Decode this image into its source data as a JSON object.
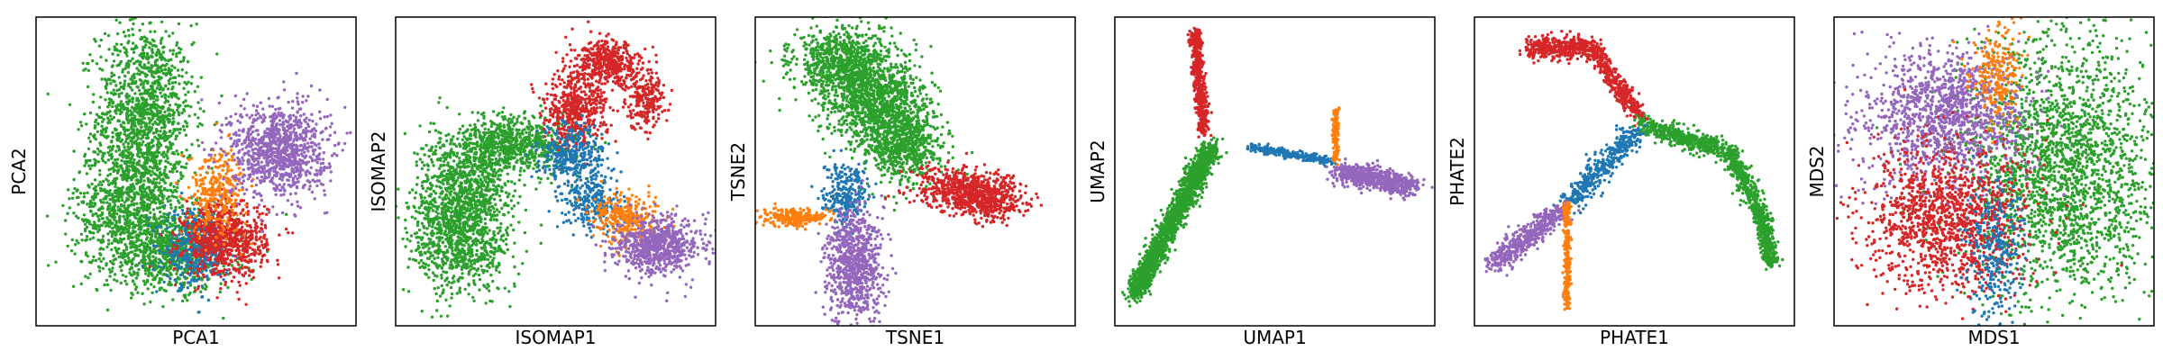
{
  "chart_data": [
    {
      "type": "scatter",
      "title": "",
      "xlabel": "PCA1",
      "ylabel": "PCA2",
      "xticks": [],
      "yticks": [],
      "xlim": [
        0,
        10
      ],
      "ylim": [
        0,
        10
      ],
      "grid": false,
      "series": [
        {
          "name": "green",
          "color": "#2ca02c",
          "clusters": [
            {
              "x": 3.4,
              "y": 6.8,
              "sx": 0.75,
              "sy": 1.5,
              "n": 1300
            },
            {
              "x": 2.9,
              "y": 3.8,
              "sx": 0.85,
              "sy": 1.0,
              "n": 900
            },
            {
              "x": 4.2,
              "y": 2.3,
              "sx": 1.0,
              "sy": 0.6,
              "n": 700
            }
          ]
        },
        {
          "name": "blue",
          "color": "#1f77b4",
          "clusters": [
            {
              "x": 5.0,
              "y": 2.5,
              "sx": 0.5,
              "sy": 0.6,
              "n": 400
            }
          ]
        },
        {
          "name": "red",
          "color": "#d62728",
          "clusters": [
            {
              "x": 5.9,
              "y": 2.8,
              "sx": 0.65,
              "sy": 0.6,
              "n": 800
            }
          ]
        },
        {
          "name": "orange",
          "color": "#ff7f0e",
          "clusters": [
            {
              "x": 5.7,
              "y": 4.4,
              "sx": 0.45,
              "sy": 0.7,
              "n": 300
            }
          ]
        },
        {
          "name": "purple",
          "color": "#9467bd",
          "clusters": [
            {
              "x": 7.6,
              "y": 5.7,
              "sx": 0.75,
              "sy": 0.75,
              "n": 1000
            }
          ]
        }
      ]
    },
    {
      "type": "scatter",
      "title": "",
      "xlabel": "ISOMAP1",
      "ylabel": "ISOMAP2",
      "xticks": [],
      "yticks": [],
      "xlim": [
        0,
        10
      ],
      "ylim": [
        0,
        10
      ],
      "grid": false,
      "series": [
        {
          "name": "green",
          "color": "#2ca02c",
          "clusters": [
            {
              "x": 2.0,
              "y": 2.8,
              "sx": 0.8,
              "sy": 0.9,
              "n": 900
            },
            {
              "x": 2.2,
              "y": 4.7,
              "sx": 0.7,
              "sy": 0.8,
              "n": 700
            },
            {
              "x": 3.8,
              "y": 5.9,
              "sx": 0.9,
              "sy": 0.45,
              "n": 700
            }
          ]
        },
        {
          "name": "red",
          "color": "#d62728",
          "clusters": [
            {
              "x": 5.6,
              "y": 7.0,
              "sx": 0.5,
              "sy": 0.6,
              "n": 500
            },
            {
              "x": 6.6,
              "y": 8.5,
              "sx": 0.5,
              "sy": 0.35,
              "n": 450
            },
            {
              "x": 7.8,
              "y": 7.4,
              "sx": 0.3,
              "sy": 0.5,
              "n": 250
            }
          ]
        },
        {
          "name": "blue",
          "color": "#1f77b4",
          "clusters": [
            {
              "x": 5.5,
              "y": 5.5,
              "sx": 0.5,
              "sy": 0.5,
              "n": 350
            },
            {
              "x": 6.2,
              "y": 4.0,
              "sx": 0.45,
              "sy": 0.45,
              "n": 250
            }
          ]
        },
        {
          "name": "orange",
          "color": "#ff7f0e",
          "clusters": [
            {
              "x": 7.2,
              "y": 3.5,
              "sx": 0.5,
              "sy": 0.4,
              "n": 300
            }
          ]
        },
        {
          "name": "purple",
          "color": "#9467bd",
          "clusters": [
            {
              "x": 8.2,
              "y": 2.6,
              "sx": 0.65,
              "sy": 0.45,
              "n": 700
            }
          ]
        }
      ]
    },
    {
      "type": "scatter",
      "title": "",
      "xlabel": "TSNE1",
      "ylabel": "TSNE2",
      "xticks": [],
      "yticks": [],
      "xlim": [
        0,
        10
      ],
      "ylim": [
        0,
        10
      ],
      "grid": false,
      "series": [
        {
          "name": "green",
          "color": "#2ca02c",
          "clusters": [
            {
              "x": 2.8,
              "y": 8.5,
              "sx": 0.8,
              "sy": 0.55,
              "n": 900
            },
            {
              "x": 3.8,
              "y": 7.2,
              "sx": 0.8,
              "sy": 0.6,
              "n": 900
            },
            {
              "x": 4.6,
              "y": 5.8,
              "sx": 0.65,
              "sy": 0.6,
              "n": 700
            }
          ]
        },
        {
          "name": "red",
          "color": "#d62728",
          "clusters": [
            {
              "x": 6.6,
              "y": 4.4,
              "sx": 0.85,
              "sy": 0.35,
              "n": 600
            },
            {
              "x": 7.3,
              "y": 4.0,
              "sx": 0.55,
              "sy": 0.28,
              "n": 300
            }
          ]
        },
        {
          "name": "blue",
          "color": "#1f77b4",
          "clusters": [
            {
              "x": 2.8,
              "y": 4.3,
              "sx": 0.35,
              "sy": 0.45,
              "n": 250
            }
          ]
        },
        {
          "name": "orange",
          "color": "#ff7f0e",
          "clusters": [
            {
              "x": 1.2,
              "y": 3.5,
              "sx": 0.45,
              "sy": 0.14,
              "n": 250
            }
          ]
        },
        {
          "name": "purple",
          "color": "#9467bd",
          "clusters": [
            {
              "x": 3.1,
              "y": 2.0,
              "sx": 0.45,
              "sy": 0.9,
              "n": 800
            }
          ]
        }
      ]
    },
    {
      "type": "scatter",
      "title": "",
      "xlabel": "UMAP1",
      "ylabel": "UMAP2",
      "xticks": [],
      "yticks": [],
      "xlim": [
        0,
        10
      ],
      "ylim": [
        0,
        10
      ],
      "grid": false,
      "series": [
        {
          "name": "green",
          "color": "#2ca02c",
          "segments": [
            {
              "x0": 0.6,
              "y0": 1.0,
              "x1": 3.0,
              "y1": 5.8,
              "sd": 0.16,
              "n": 1800
            }
          ]
        },
        {
          "name": "red",
          "color": "#d62728",
          "segments": [
            {
              "x0": 2.5,
              "y0": 9.5,
              "x1": 2.8,
              "y1": 6.2,
              "sd": 0.09,
              "n": 500
            }
          ]
        },
        {
          "name": "blue",
          "color": "#1f77b4",
          "segments": [
            {
              "x0": 4.2,
              "y0": 5.8,
              "x1": 6.8,
              "y1": 5.3,
              "sd": 0.07,
              "n": 300
            }
          ]
        },
        {
          "name": "orange",
          "color": "#ff7f0e",
          "segments": [
            {
              "x0": 6.9,
              "y0": 7.0,
              "x1": 6.9,
              "y1": 5.3,
              "sd": 0.05,
              "n": 150
            }
          ]
        },
        {
          "name": "purple",
          "color": "#9467bd",
          "segments": [
            {
              "x0": 7.0,
              "y0": 5.0,
              "x1": 9.3,
              "y1": 4.5,
              "sd": 0.18,
              "n": 700
            }
          ]
        }
      ]
    },
    {
      "type": "scatter",
      "title": "",
      "xlabel": "PHATE1",
      "ylabel": "PHATE2",
      "xticks": [],
      "yticks": [],
      "xlim": [
        0,
        10
      ],
      "ylim": [
        0,
        10
      ],
      "grid": false,
      "series": [
        {
          "name": "red",
          "color": "#d62728",
          "segments": [
            {
              "x0": 1.7,
              "y0": 9.0,
              "x1": 3.7,
              "y1": 9.0,
              "sd": 0.18,
              "n": 400
            },
            {
              "x0": 3.7,
              "y0": 9.0,
              "x1": 5.2,
              "y1": 6.7,
              "sd": 0.14,
              "n": 400
            }
          ]
        },
        {
          "name": "green",
          "color": "#2ca02c",
          "segments": [
            {
              "x0": 5.2,
              "y0": 6.5,
              "x1": 8.0,
              "y1": 5.6,
              "sd": 0.16,
              "n": 500
            },
            {
              "x0": 8.0,
              "y0": 5.6,
              "x1": 9.0,
              "y1": 3.5,
              "sd": 0.14,
              "n": 400
            },
            {
              "x0": 9.0,
              "y0": 3.5,
              "x1": 9.3,
              "y1": 2.0,
              "sd": 0.12,
              "n": 300
            }
          ]
        },
        {
          "name": "blue",
          "color": "#1f77b4",
          "segments": [
            {
              "x0": 5.0,
              "y0": 6.3,
              "x1": 3.0,
              "y1": 4.0,
              "sd": 0.2,
              "n": 400
            }
          ]
        },
        {
          "name": "purple",
          "color": "#9467bd",
          "segments": [
            {
              "x0": 2.8,
              "y0": 3.8,
              "x1": 0.6,
              "y1": 2.0,
              "sd": 0.18,
              "n": 500
            }
          ]
        },
        {
          "name": "orange",
          "color": "#ff7f0e",
          "segments": [
            {
              "x0": 2.9,
              "y0": 4.0,
              "x1": 2.9,
              "y1": 0.6,
              "sd": 0.06,
              "n": 250
            }
          ]
        }
      ]
    },
    {
      "type": "scatter",
      "title": "",
      "xlabel": "MDS1",
      "ylabel": "MDS2",
      "xticks": [],
      "yticks": [],
      "xlim": [
        0,
        10
      ],
      "ylim": [
        0,
        10
      ],
      "grid": false,
      "series": [
        {
          "name": "green",
          "color": "#2ca02c",
          "clusters": [
            {
              "x": 7.2,
              "y": 5.0,
              "sx": 1.5,
              "sy": 2.1,
              "n": 2200
            }
          ]
        },
        {
          "name": "purple",
          "color": "#9467bd",
          "clusters": [
            {
              "x": 3.5,
              "y": 6.8,
              "sx": 1.3,
              "sy": 1.1,
              "n": 1300
            }
          ]
        },
        {
          "name": "red",
          "color": "#d62728",
          "clusters": [
            {
              "x": 3.6,
              "y": 3.5,
              "sx": 1.3,
              "sy": 1.2,
              "n": 1300
            }
          ]
        },
        {
          "name": "blue",
          "color": "#1f77b4",
          "clusters": [
            {
              "x": 5.0,
              "y": 2.3,
              "sx": 0.45,
              "sy": 1.1,
              "n": 300
            }
          ]
        },
        {
          "name": "orange",
          "color": "#ff7f0e",
          "clusters": [
            {
              "x": 5.1,
              "y": 8.1,
              "sx": 0.4,
              "sy": 0.8,
              "n": 250
            }
          ]
        }
      ]
    }
  ]
}
